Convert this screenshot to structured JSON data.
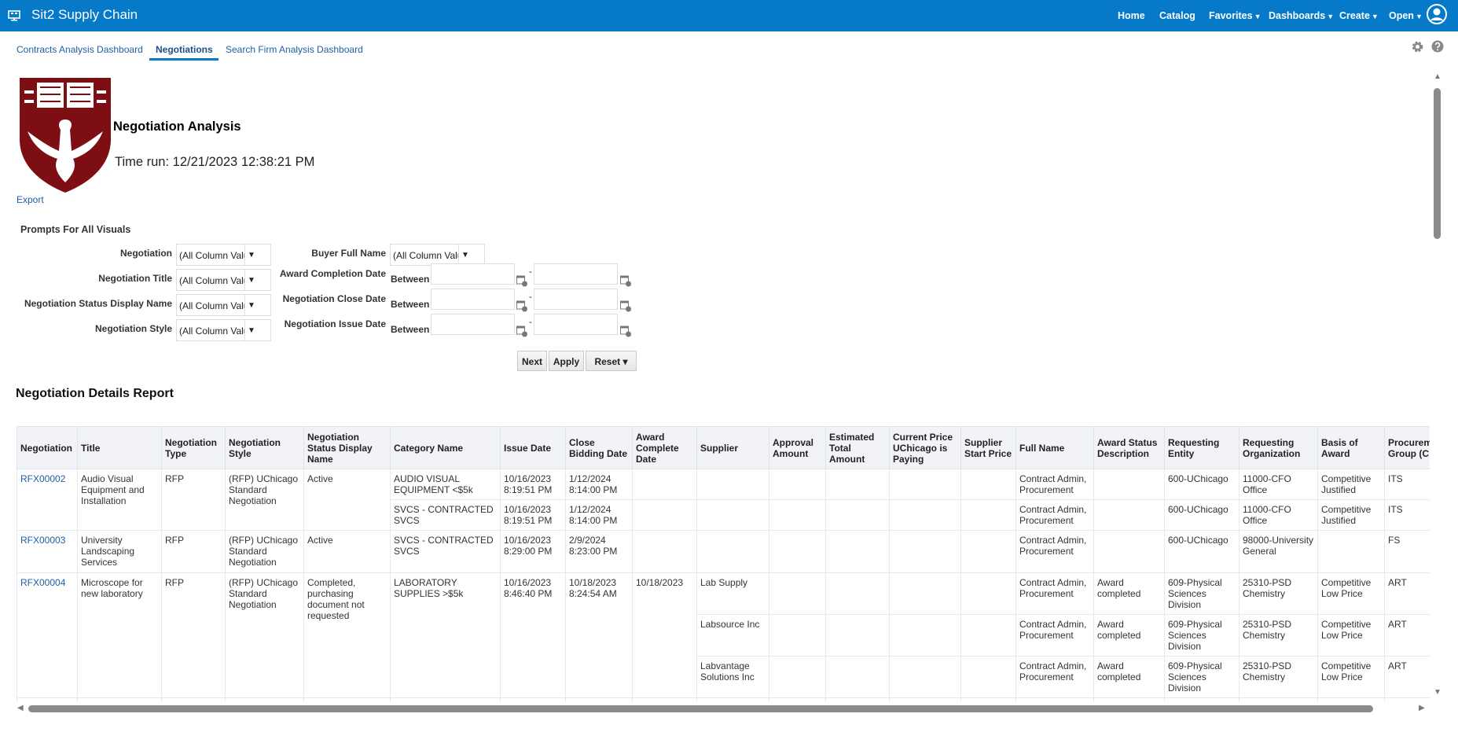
{
  "header": {
    "app_title": "Sit2 Supply Chain",
    "nav": [
      {
        "label": "Home",
        "caret": false
      },
      {
        "label": "Catalog",
        "caret": false
      },
      {
        "label": "Favorites",
        "caret": true
      },
      {
        "label": "Dashboards",
        "caret": true
      },
      {
        "label": "Create",
        "caret": true
      },
      {
        "label": "Open",
        "caret": true
      }
    ],
    "brand_color": "#0679c9"
  },
  "tabs": [
    {
      "label": "Contracts Analysis Dashboard"
    },
    {
      "label": "Negotiations",
      "active": true
    },
    {
      "label": "Search Firm Analysis Dashboard"
    }
  ],
  "report_header": {
    "title": "Negotiation Analysis",
    "time_run": "Time run: 12/21/2023 12:38:21 PM",
    "export": "Export",
    "logo_text": [
      "cres-",
      "catsci",
      "entia",
      "Vita",
      "exco-",
      "latur"
    ]
  },
  "prompts": {
    "title": "Prompts For All Visuals",
    "selects": [
      {
        "label": "Negotiation",
        "value": "(All Column Values)"
      },
      {
        "label": "Negotiation Title",
        "value": "(All Column Values)"
      },
      {
        "label": "Negotiation Status Display Name",
        "value": "(All Column Values)"
      },
      {
        "label": "Negotiation Style",
        "value": "(All Column Values)"
      }
    ],
    "buyer": {
      "label": "Buyer Full Name",
      "value": "(All Column Values)"
    },
    "dates": [
      {
        "label": "Award Completion Date",
        "operator": "Between",
        "from": "",
        "to": ""
      },
      {
        "label": "Negotiation Close Date",
        "operator": "Between",
        "from": "",
        "to": ""
      },
      {
        "label": "Negotiation Issue Date",
        "operator": "Between",
        "from": "",
        "to": ""
      }
    ],
    "separator": "-",
    "buttons": {
      "next": "Next",
      "apply": "Apply",
      "reset": "Reset ▾"
    }
  },
  "report": {
    "title": "Negotiation Details Report",
    "columns": [
      "Negotiation",
      "Title",
      "Negotiation Type",
      "Negotiation Style",
      "Negotiation Status Display Name",
      "Category Name",
      "Issue Date",
      "Close Bidding Date",
      "Award Complete Date",
      "Supplier",
      "Approval Amount",
      "Estimated Total Amount",
      "Current Price UChicago is Paying",
      "Supplier Start Price",
      "Full Name",
      "Award Status Description",
      "Requesting Entity",
      "Requesting Organization",
      "Basis of Award",
      "Procurement Group (C"
    ],
    "rows": [
      [
        {
          "t": "RFX00002",
          "rs": 2,
          "link": true
        },
        {
          "t": "Audio Visual Equipment and Installation",
          "rs": 2
        },
        {
          "t": "RFP",
          "rs": 2
        },
        {
          "t": "(RFP) UChicago Standard Negotiation",
          "rs": 2
        },
        {
          "t": "Active",
          "rs": 2
        },
        {
          "t": "AUDIO VISUAL EQUIPMENT <$5k"
        },
        {
          "t": "10/16/2023 8:19:51 PM"
        },
        {
          "t": "1/12/2024 8:14:00 PM"
        },
        {
          "t": ""
        },
        {
          "t": ""
        },
        {
          "t": ""
        },
        {
          "t": ""
        },
        {
          "t": ""
        },
        {
          "t": ""
        },
        {
          "t": "Contract Admin, Procurement"
        },
        {
          "t": ""
        },
        {
          "t": "600-UChicago"
        },
        {
          "t": "11000-CFO Office"
        },
        {
          "t": "Competitive Justified"
        },
        {
          "t": "ITS"
        }
      ],
      [
        {
          "t": "SVCS - CONTRACTED SVCS"
        },
        {
          "t": "10/16/2023 8:19:51 PM"
        },
        {
          "t": "1/12/2024 8:14:00 PM"
        },
        {
          "t": ""
        },
        {
          "t": ""
        },
        {
          "t": ""
        },
        {
          "t": ""
        },
        {
          "t": ""
        },
        {
          "t": ""
        },
        {
          "t": "Contract Admin, Procurement"
        },
        {
          "t": ""
        },
        {
          "t": "600-UChicago"
        },
        {
          "t": "11000-CFO Office"
        },
        {
          "t": "Competitive Justified"
        },
        {
          "t": "ITS"
        }
      ],
      [
        {
          "t": "RFX00003",
          "link": true
        },
        {
          "t": "University Landscaping Services"
        },
        {
          "t": "RFP"
        },
        {
          "t": "(RFP) UChicago Standard Negotiation"
        },
        {
          "t": "Active"
        },
        {
          "t": "SVCS - CONTRACTED SVCS"
        },
        {
          "t": "10/16/2023 8:29:00 PM"
        },
        {
          "t": "2/9/2024 8:23:00 PM"
        },
        {
          "t": ""
        },
        {
          "t": ""
        },
        {
          "t": ""
        },
        {
          "t": ""
        },
        {
          "t": ""
        },
        {
          "t": ""
        },
        {
          "t": "Contract Admin, Procurement"
        },
        {
          "t": ""
        },
        {
          "t": "600-UChicago"
        },
        {
          "t": "98000-University General"
        },
        {
          "t": ""
        },
        {
          "t": "FS"
        }
      ],
      [
        {
          "t": "RFX00004",
          "rs": 3,
          "link": true
        },
        {
          "t": "Microscope for new laboratory",
          "rs": 3
        },
        {
          "t": "RFP",
          "rs": 3
        },
        {
          "t": "(RFP) UChicago Standard Negotiation",
          "rs": 3
        },
        {
          "t": "Completed, purchasing document not requested",
          "rs": 3
        },
        {
          "t": "LABORATORY SUPPLIES >$5k",
          "rs": 3
        },
        {
          "t": "10/16/2023 8:46:40 PM",
          "rs": 3
        },
        {
          "t": "10/18/2023 8:24:54 AM",
          "rs": 3
        },
        {
          "t": "10/18/2023",
          "rs": 3
        },
        {
          "t": "Lab Supply"
        },
        {
          "t": ""
        },
        {
          "t": ""
        },
        {
          "t": ""
        },
        {
          "t": ""
        },
        {
          "t": "Contract Admin, Procurement"
        },
        {
          "t": "Award completed"
        },
        {
          "t": "609-Physical Sciences Division"
        },
        {
          "t": "25310-PSD Chemistry"
        },
        {
          "t": "Competitive Low Price"
        },
        {
          "t": "ART"
        }
      ],
      [
        {
          "t": "Labsource Inc"
        },
        {
          "t": ""
        },
        {
          "t": ""
        },
        {
          "t": ""
        },
        {
          "t": ""
        },
        {
          "t": "Contract Admin, Procurement"
        },
        {
          "t": "Award completed"
        },
        {
          "t": "609-Physical Sciences Division"
        },
        {
          "t": "25310-PSD Chemistry"
        },
        {
          "t": "Competitive Low Price"
        },
        {
          "t": "ART"
        }
      ],
      [
        {
          "t": "Labvantage Solutions Inc"
        },
        {
          "t": ""
        },
        {
          "t": ""
        },
        {
          "t": ""
        },
        {
          "t": ""
        },
        {
          "t": "Contract Admin, Procurement"
        },
        {
          "t": "Award completed"
        },
        {
          "t": "609-Physical Sciences Division"
        },
        {
          "t": "25310-PSD Chemistry"
        },
        {
          "t": "Competitive Low Price"
        },
        {
          "t": "ART"
        }
      ]
    ]
  }
}
